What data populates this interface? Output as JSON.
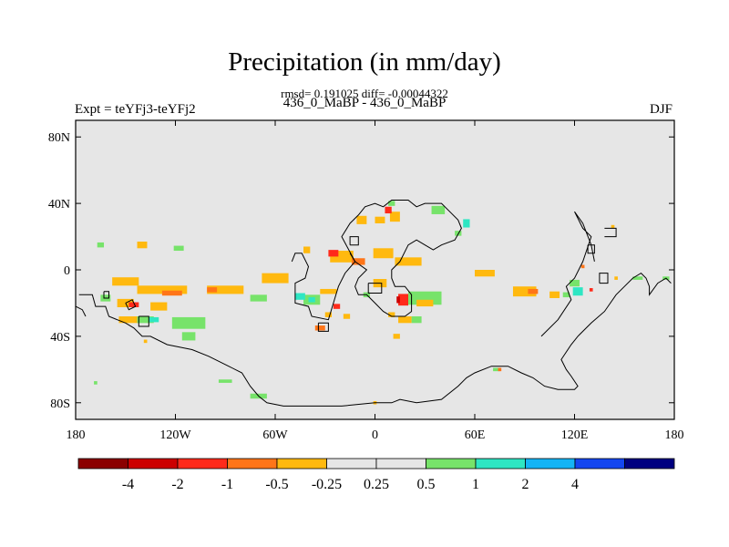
{
  "chart_data": {
    "type": "heatmap",
    "title": "Precipitation (in mm/day)",
    "stats_line": "rmsd= 0.191025 diff= -0.00044322",
    "period_line": "436_0_MaBP - 436_0_MaBP",
    "left_label": "Expt = teYFj3-teYFj2",
    "right_label": "DJF",
    "xlim": [
      -180,
      180
    ],
    "ylim": [
      -90,
      90
    ],
    "x_ticks": [
      {
        "value": -180,
        "label": "180"
      },
      {
        "value": -120,
        "label": "120W"
      },
      {
        "value": -60,
        "label": "60W"
      },
      {
        "value": 0,
        "label": "0"
      },
      {
        "value": 60,
        "label": "60E"
      },
      {
        "value": 120,
        "label": "120E"
      },
      {
        "value": 180,
        "label": "180"
      }
    ],
    "y_ticks": [
      {
        "value": 80,
        "label": "80N"
      },
      {
        "value": 40,
        "label": "40N"
      },
      {
        "value": 0,
        "label": "0"
      },
      {
        "value": -40,
        "label": "40S"
      },
      {
        "value": -80,
        "label": "80S"
      }
    ],
    "colorbar": {
      "colors": [
        "#8b0000",
        "#cc0000",
        "#ff2a1a",
        "#ff7518",
        "#ffb90f",
        "#e6e6e6",
        "#e6e6e6",
        "#77e36a",
        "#2ee6c3",
        "#14b4f5",
        "#1446f0",
        "#000080"
      ],
      "labels": [
        "-4",
        "-2",
        "-1",
        "-0.5",
        "-0.25",
        "0.25",
        "0.5",
        "1",
        "2",
        "4"
      ]
    },
    "background_color": "#e6e6e6",
    "anomaly_cells": [
      {
        "lon": -140,
        "lat": 15,
        "w": 6,
        "h": 4,
        "c": "#ffb90f"
      },
      {
        "lon": -165,
        "lat": 15,
        "w": 4,
        "h": 3,
        "c": "#77e36a"
      },
      {
        "lon": -118,
        "lat": 13,
        "w": 6,
        "h": 3,
        "c": "#77e36a"
      },
      {
        "lon": -150,
        "lat": -7,
        "w": 16,
        "h": 5,
        "c": "#ffb90f"
      },
      {
        "lon": -128,
        "lat": -12,
        "w": 30,
        "h": 5,
        "c": "#ffb90f"
      },
      {
        "lon": -122,
        "lat": -14,
        "w": 12,
        "h": 3,
        "c": "#ff7518"
      },
      {
        "lon": -90,
        "lat": -12,
        "w": 22,
        "h": 5,
        "c": "#ffb90f"
      },
      {
        "lon": -98,
        "lat": -12,
        "w": 6,
        "h": 3,
        "c": "#ff7518"
      },
      {
        "lon": -60,
        "lat": -5,
        "w": 16,
        "h": 6,
        "c": "#ffb90f"
      },
      {
        "lon": -70,
        "lat": -17,
        "w": 10,
        "h": 4,
        "c": "#77e36a"
      },
      {
        "lon": -162,
        "lat": -17,
        "w": 6,
        "h": 4,
        "c": "#77e36a"
      },
      {
        "lon": -150,
        "lat": -20,
        "w": 10,
        "h": 5,
        "c": "#ffb90f"
      },
      {
        "lon": -145,
        "lat": -21,
        "w": 6,
        "h": 3,
        "c": "#ff2a1a"
      },
      {
        "lon": -130,
        "lat": -22,
        "w": 10,
        "h": 5,
        "c": "#ffb90f"
      },
      {
        "lon": -148,
        "lat": -30,
        "w": 12,
        "h": 4,
        "c": "#ffb90f"
      },
      {
        "lon": -138,
        "lat": -30,
        "w": 10,
        "h": 4,
        "c": "#77e36a"
      },
      {
        "lon": -133,
        "lat": -30,
        "w": 6,
        "h": 3,
        "c": "#2ee6c3"
      },
      {
        "lon": -112,
        "lat": -32,
        "w": 20,
        "h": 7,
        "c": "#77e36a"
      },
      {
        "lon": -112,
        "lat": -40,
        "w": 8,
        "h": 5,
        "c": "#77e36a"
      },
      {
        "lon": -138,
        "lat": -43,
        "w": 2,
        "h": 2,
        "c": "#ffb90f"
      },
      {
        "lon": -90,
        "lat": -67,
        "w": 8,
        "h": 2,
        "c": "#77e36a"
      },
      {
        "lon": -168,
        "lat": -68,
        "w": 2,
        "h": 2,
        "c": "#77e36a"
      },
      {
        "lon": -70,
        "lat": -76,
        "w": 10,
        "h": 3,
        "c": "#77e36a"
      },
      {
        "lon": -41,
        "lat": 12,
        "w": 4,
        "h": 4,
        "c": "#ffb90f"
      },
      {
        "lon": -20,
        "lat": 8,
        "w": 14,
        "h": 7,
        "c": "#ffb90f"
      },
      {
        "lon": -25,
        "lat": 10,
        "w": 6,
        "h": 4,
        "c": "#ff2a1a"
      },
      {
        "lon": -10,
        "lat": 5,
        "w": 8,
        "h": 4,
        "c": "#ff7518"
      },
      {
        "lon": 5,
        "lat": 10,
        "w": 12,
        "h": 6,
        "c": "#ffb90f"
      },
      {
        "lon": 20,
        "lat": 5,
        "w": 16,
        "h": 5,
        "c": "#ffb90f"
      },
      {
        "lon": -8,
        "lat": 30,
        "w": 6,
        "h": 5,
        "c": "#ffb90f"
      },
      {
        "lon": 3,
        "lat": 30,
        "w": 6,
        "h": 4,
        "c": "#ffb90f"
      },
      {
        "lon": 12,
        "lat": 32,
        "w": 6,
        "h": 6,
        "c": "#ffb90f"
      },
      {
        "lon": 8,
        "lat": 36,
        "w": 4,
        "h": 4,
        "c": "#ff2a1a"
      },
      {
        "lon": 38,
        "lat": 36,
        "w": 8,
        "h": 5,
        "c": "#77e36a"
      },
      {
        "lon": 10,
        "lat": 40,
        "w": 4,
        "h": 3,
        "c": "#77e36a"
      },
      {
        "lon": 55,
        "lat": 28,
        "w": 4,
        "h": 5,
        "c": "#2ee6c3"
      },
      {
        "lon": 50,
        "lat": 22,
        "w": 4,
        "h": 3,
        "c": "#77e36a"
      },
      {
        "lon": 66,
        "lat": -2,
        "w": 12,
        "h": 4,
        "c": "#ffb90f"
      },
      {
        "lon": 90,
        "lat": -13,
        "w": 14,
        "h": 6,
        "c": "#ffb90f"
      },
      {
        "lon": 95,
        "lat": -13,
        "w": 6,
        "h": 3,
        "c": "#ff7518"
      },
      {
        "lon": 108,
        "lat": -15,
        "w": 6,
        "h": 4,
        "c": "#ffb90f"
      },
      {
        "lon": 120,
        "lat": -8,
        "w": 6,
        "h": 4,
        "c": "#77e36a"
      },
      {
        "lon": 122,
        "lat": -13,
        "w": 6,
        "h": 5,
        "c": "#2ee6c3"
      },
      {
        "lon": 115,
        "lat": -15,
        "w": 4,
        "h": 3,
        "c": "#77e36a"
      },
      {
        "lon": 130,
        "lat": -12,
        "w": 2,
        "h": 2,
        "c": "#ff2a1a"
      },
      {
        "lon": 125,
        "lat": 2,
        "w": 2,
        "h": 2,
        "c": "#ff7518"
      },
      {
        "lon": 145,
        "lat": -5,
        "w": 2,
        "h": 2,
        "c": "#ffb90f"
      },
      {
        "lon": 158,
        "lat": -5,
        "w": 6,
        "h": 2,
        "c": "#77e36a"
      },
      {
        "lon": 175,
        "lat": -5,
        "w": 4,
        "h": 2,
        "c": "#77e36a"
      },
      {
        "lon": 143,
        "lat": 26,
        "w": 2,
        "h": 2,
        "c": "#ffb90f"
      },
      {
        "lon": 30,
        "lat": -17,
        "w": 20,
        "h": 8,
        "c": "#77e36a"
      },
      {
        "lon": 30,
        "lat": -20,
        "w": 10,
        "h": 4,
        "c": "#ffb90f"
      },
      {
        "lon": 17,
        "lat": -18,
        "w": 6,
        "h": 7,
        "c": "#ff2a1a"
      },
      {
        "lon": 14,
        "lat": -18,
        "w": 2,
        "h": 4,
        "c": "#cc0000"
      },
      {
        "lon": 3,
        "lat": -8,
        "w": 8,
        "h": 5,
        "c": "#ffb90f"
      },
      {
        "lon": -5,
        "lat": -15,
        "w": 4,
        "h": 3,
        "c": "#77e36a"
      },
      {
        "lon": -28,
        "lat": -13,
        "w": 10,
        "h": 3,
        "c": "#ffb90f"
      },
      {
        "lon": -38,
        "lat": -18,
        "w": 10,
        "h": 6,
        "c": "#77e36a"
      },
      {
        "lon": -45,
        "lat": -16,
        "w": 6,
        "h": 4,
        "c": "#2ee6c3"
      },
      {
        "lon": -38,
        "lat": -18,
        "w": 4,
        "h": 3,
        "c": "#2ee6c3"
      },
      {
        "lon": -28,
        "lat": -27,
        "w": 4,
        "h": 3,
        "c": "#ffb90f"
      },
      {
        "lon": -23,
        "lat": -22,
        "w": 4,
        "h": 3,
        "c": "#ff2a1a"
      },
      {
        "lon": -33,
        "lat": -35,
        "w": 6,
        "h": 3,
        "c": "#ff7518"
      },
      {
        "lon": -17,
        "lat": -28,
        "w": 4,
        "h": 3,
        "c": "#ffb90f"
      },
      {
        "lon": 10,
        "lat": -27,
        "w": 4,
        "h": 3,
        "c": "#ffb90f"
      },
      {
        "lon": 18,
        "lat": -30,
        "w": 8,
        "h": 4,
        "c": "#ffb90f"
      },
      {
        "lon": 25,
        "lat": -30,
        "w": 6,
        "h": 4,
        "c": "#77e36a"
      },
      {
        "lon": 13,
        "lat": -40,
        "w": 4,
        "h": 3,
        "c": "#ffb90f"
      },
      {
        "lon": 73,
        "lat": -60,
        "w": 4,
        "h": 2,
        "c": "#77e36a"
      },
      {
        "lon": 75,
        "lat": -60,
        "w": 2,
        "h": 2,
        "c": "#ff7518"
      },
      {
        "lon": 0,
        "lat": -80,
        "w": 2,
        "h": 2,
        "c": "#ffb90f"
      }
    ],
    "coastlines": [
      [
        [
          -178,
          -15
        ],
        [
          -170,
          -15
        ],
        [
          -168,
          -22
        ],
        [
          -162,
          -22
        ],
        [
          -160,
          -28
        ],
        [
          -155,
          -30
        ],
        [
          -150,
          -32
        ],
        [
          -145,
          -35
        ],
        [
          -140,
          -40
        ],
        [
          -135,
          -40
        ],
        [
          -125,
          -45
        ],
        [
          -110,
          -48
        ],
        [
          -100,
          -52
        ],
        [
          -88,
          -58
        ],
        [
          -80,
          -62
        ],
        [
          -75,
          -70
        ],
        [
          -70,
          -76
        ],
        [
          -65,
          -80
        ],
        [
          -55,
          -82
        ],
        [
          -40,
          -82
        ],
        [
          -20,
          -82
        ],
        [
          0,
          -80
        ],
        [
          10,
          -80
        ],
        [
          15,
          -78
        ],
        [
          25,
          -80
        ],
        [
          40,
          -78
        ],
        [
          50,
          -70
        ],
        [
          55,
          -65
        ],
        [
          60,
          -62
        ],
        [
          70,
          -58
        ],
        [
          80,
          -58
        ],
        [
          88,
          -62
        ],
        [
          95,
          -65
        ],
        [
          102,
          -70
        ],
        [
          110,
          -72
        ],
        [
          120,
          -72
        ],
        [
          122,
          -70
        ],
        [
          118,
          -64
        ],
        [
          115,
          -60
        ],
        [
          112,
          -54
        ],
        [
          118,
          -45
        ],
        [
          122,
          -40
        ],
        [
          130,
          -32
        ],
        [
          138,
          -25
        ],
        [
          145,
          -15
        ],
        [
          150,
          -10
        ],
        [
          155,
          -5
        ],
        [
          160,
          -2
        ],
        [
          163,
          -5
        ],
        [
          165,
          -10
        ],
        [
          165,
          -15
        ],
        [
          170,
          -8
        ],
        [
          175,
          -5
        ],
        [
          178,
          -8
        ]
      ],
      [
        [
          -180,
          -22
        ],
        [
          -176,
          -24
        ],
        [
          -174,
          -28
        ]
      ],
      [
        [
          -150,
          -20
        ],
        [
          -146,
          -18
        ],
        [
          -144,
          -22
        ],
        [
          -148,
          -24
        ],
        [
          -150,
          -20
        ]
      ],
      [
        [
          -142,
          -28
        ],
        [
          -136,
          -28
        ],
        [
          -136,
          -34
        ],
        [
          -142,
          -34
        ],
        [
          -142,
          -28
        ]
      ],
      [
        [
          -163,
          -13
        ],
        [
          -160,
          -13
        ],
        [
          -160,
          -17
        ],
        [
          -163,
          -17
        ],
        [
          -163,
          -13
        ]
      ],
      [
        [
          -50,
          5
        ],
        [
          -48,
          10
        ],
        [
          -44,
          10
        ],
        [
          -40,
          2
        ],
        [
          -42,
          -5
        ],
        [
          -48,
          -8
        ],
        [
          -48,
          -20
        ],
        [
          -40,
          -22
        ],
        [
          -38,
          -28
        ],
        [
          -28,
          -30
        ],
        [
          -25,
          -20
        ],
        [
          -22,
          -10
        ],
        [
          -18,
          -2
        ],
        [
          -12,
          5
        ],
        [
          -15,
          10
        ]
      ],
      [
        [
          -34,
          -32
        ],
        [
          -28,
          -32
        ],
        [
          -28,
          -37
        ],
        [
          -34,
          -37
        ],
        [
          -34,
          -32
        ]
      ],
      [
        [
          -10,
          33
        ],
        [
          -6,
          38
        ],
        [
          0,
          40
        ],
        [
          5,
          38
        ],
        [
          10,
          42
        ],
        [
          20,
          42
        ],
        [
          25,
          38
        ],
        [
          30,
          40
        ],
        [
          40,
          40
        ],
        [
          45,
          35
        ],
        [
          50,
          30
        ],
        [
          52,
          25
        ],
        [
          48,
          18
        ],
        [
          40,
          15
        ],
        [
          35,
          12
        ],
        [
          30,
          15
        ],
        [
          25,
          18
        ],
        [
          20,
          15
        ],
        [
          15,
          5
        ],
        [
          10,
          0
        ],
        [
          10,
          -5
        ],
        [
          12,
          -10
        ],
        [
          18,
          -10
        ],
        [
          22,
          -15
        ],
        [
          22,
          -25
        ],
        [
          18,
          -28
        ],
        [
          10,
          -28
        ],
        [
          5,
          -25
        ],
        [
          0,
          -20
        ],
        [
          -5,
          -15
        ],
        [
          -10,
          -15
        ],
        [
          -12,
          -10
        ],
        [
          -10,
          -5
        ],
        [
          -5,
          0
        ],
        [
          -12,
          5
        ],
        [
          -20,
          20
        ],
        [
          -15,
          28
        ],
        [
          -10,
          33
        ]
      ],
      [
        [
          -15,
          15
        ],
        [
          -10,
          15
        ],
        [
          -10,
          20
        ],
        [
          -15,
          20
        ],
        [
          -15,
          15
        ]
      ],
      [
        [
          -4,
          -8
        ],
        [
          4,
          -8
        ],
        [
          4,
          -14
        ],
        [
          -4,
          -14
        ],
        [
          -4,
          -8
        ]
      ],
      [
        [
          100,
          -40
        ],
        [
          110,
          -30
        ],
        [
          118,
          -18
        ],
        [
          115,
          -10
        ],
        [
          120,
          -5
        ],
        [
          125,
          5
        ],
        [
          130,
          20
        ],
        [
          125,
          25
        ],
        [
          120,
          35
        ],
        [
          125,
          28
        ],
        [
          130,
          15
        ],
        [
          132,
          5
        ]
      ],
      [
        [
          128,
          15
        ],
        [
          132,
          15
        ],
        [
          132,
          10
        ],
        [
          128,
          10
        ],
        [
          128,
          15
        ]
      ],
      [
        [
          135,
          -8
        ],
        [
          140,
          -8
        ],
        [
          140,
          -2
        ],
        [
          135,
          -2
        ],
        [
          135,
          -8
        ]
      ],
      [
        [
          138,
          25
        ],
        [
          145,
          25
        ],
        [
          145,
          20
        ],
        [
          138,
          20
        ]
      ]
    ]
  }
}
